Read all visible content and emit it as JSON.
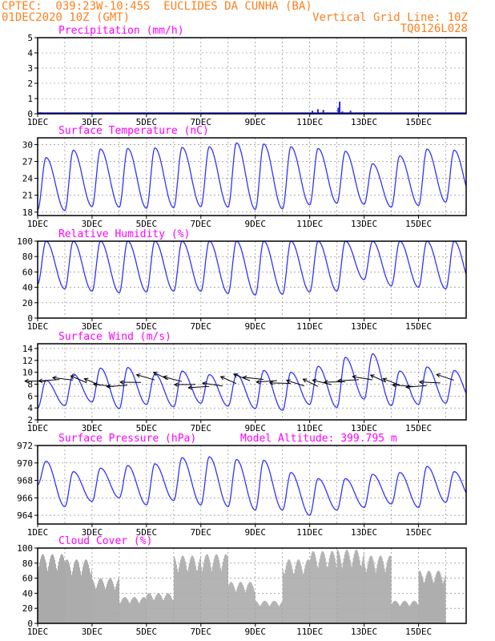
{
  "header": {
    "line1": "CPTEC:  039:23W-10:45S  EUCLIDES DA CUNHA (BA)",
    "line2": "01DEC2020 10Z (GMT)",
    "grid_note": "Vertical Grid Line: 10Z",
    "run_code": "TQ0126L028"
  },
  "colors": {
    "header": "#ff7f1e",
    "title": "#ff00ff",
    "line": "#3333ff",
    "bar": "#2222ee",
    "cloud": "#aaaaaa"
  },
  "xaxis": {
    "ticks": [
      "1DEC",
      "3DEC",
      "5DEC",
      "7DEC",
      "9DEC",
      "11DEC",
      "13DEC",
      "15DEC"
    ]
  },
  "chart_data": [
    {
      "type": "bar",
      "title": "Precipitation (mm/h)",
      "ylim": [
        0,
        5
      ],
      "yticks": [
        "0",
        "1",
        "2",
        "3",
        "4",
        "5"
      ],
      "x": [
        "1DEC",
        "11DEC",
        "11DEC",
        "11DEC",
        "12DEC",
        "12DEC",
        "12DEC",
        "12DEC",
        "13DEC"
      ],
      "x_days": [
        0.1,
        10.1,
        10.3,
        10.5,
        11.05,
        11.1,
        11.2,
        11.5,
        12.0
      ],
      "values": [
        0.1,
        0.2,
        0.3,
        0.25,
        0.4,
        0.8,
        0.15,
        0.2,
        0.1
      ]
    },
    {
      "type": "line",
      "title": "Surface Temperature (nC)",
      "ylim": [
        17.4,
        31.2
      ],
      "yticks": [
        "18",
        "21",
        "24",
        "27",
        "30"
      ],
      "daily_min": [
        18.4,
        18.3,
        19.0,
        18.9,
        18.7,
        18.8,
        19.0,
        18.9,
        18.5,
        18.6,
        19.3,
        19.6,
        19.4,
        18.9,
        19.2,
        19.8
      ],
      "daily_max": [
        27.7,
        29.0,
        29.2,
        29.3,
        29.4,
        29.5,
        29.6,
        30.3,
        30.1,
        29.6,
        29.3,
        28.8,
        26.6,
        28.0,
        29.2,
        29.0
      ]
    },
    {
      "type": "line",
      "title": "Relative Humidity (%)",
      "ylim": [
        0,
        100
      ],
      "yticks": [
        "0",
        "20",
        "40",
        "60",
        "80",
        "100"
      ],
      "daily_min": [
        44,
        38,
        35,
        33,
        34,
        35,
        35,
        32,
        30,
        31,
        34,
        35,
        50,
        42,
        40,
        38
      ],
      "daily_max": [
        100,
        100,
        100,
        100,
        100,
        100,
        100,
        100,
        100,
        100,
        100,
        100,
        100,
        100,
        100,
        100
      ]
    },
    {
      "type": "line",
      "title": "Surface Wind (m/s)",
      "ylim": [
        2,
        14.8
      ],
      "yticks": [
        "2",
        "4",
        "6",
        "8",
        "10",
        "12",
        "14"
      ],
      "daily_min": [
        4.0,
        4.4,
        5.0,
        3.9,
        4.6,
        4.2,
        4.8,
        4.3,
        3.9,
        3.6,
        4.6,
        4.1,
        5.5,
        4.4,
        4.6,
        4.8
      ],
      "daily_max": [
        8.6,
        9.7,
        10.7,
        10.8,
        9.7,
        10.2,
        9.6,
        9.6,
        10.3,
        10.0,
        11.0,
        12.5,
        13.1,
        10.2,
        10.9,
        10.3
      ]
    },
    {
      "type": "line",
      "title": "Surface Pressure (hPa)",
      "annotation": "Model Altitude: 399.795 m",
      "ylim": [
        963,
        972
      ],
      "yticks": [
        "964",
        "966",
        "968",
        "970",
        "972"
      ],
      "daily_min": [
        967.5,
        965.0,
        965.6,
        966.0,
        965.2,
        965.7,
        965.2,
        965.0,
        964.6,
        964.6,
        964.0,
        964.6,
        964.9,
        965.3,
        964.9,
        965.5
      ],
      "daily_max": [
        970.2,
        969.0,
        969.4,
        969.7,
        969.9,
        970.6,
        970.7,
        970.4,
        970.3,
        968.9,
        968.2,
        968.2,
        968.7,
        968.9,
        969.6,
        969.0
      ]
    },
    {
      "type": "area",
      "title": "Cloud Cover (%)",
      "ylim": [
        0,
        100
      ],
      "yticks": [
        "0",
        "20",
        "40",
        "60",
        "80",
        "100"
      ],
      "segments": [
        {
          "from": "1DEC",
          "to": "2DEC",
          "level": 92
        },
        {
          "from": "2DEC",
          "to": "3DEC",
          "level": 85
        },
        {
          "from": "3DEC",
          "to": "4DEC",
          "level": 60
        },
        {
          "from": "4DEC",
          "to": "5DEC",
          "level": 35
        },
        {
          "from": "5DEC",
          "to": "6DEC",
          "level": 40
        },
        {
          "from": "6DEC",
          "to": "7DEC",
          "level": 90
        },
        {
          "from": "7DEC",
          "to": "8DEC",
          "level": 92
        },
        {
          "from": "8DEC",
          "to": "9DEC",
          "level": 55
        },
        {
          "from": "9DEC",
          "to": "10DEC",
          "level": 30
        },
        {
          "from": "10DEC",
          "to": "11DEC",
          "level": 85
        },
        {
          "from": "11DEC",
          "to": "12DEC",
          "level": 96
        },
        {
          "from": "12DEC",
          "to": "13DEC",
          "level": 98
        },
        {
          "from": "13DEC",
          "to": "14DEC",
          "level": 90
        },
        {
          "from": "14DEC",
          "to": "15DEC",
          "level": 30
        },
        {
          "from": "15DEC",
          "to": "16DEC",
          "level": 70
        }
      ]
    }
  ]
}
